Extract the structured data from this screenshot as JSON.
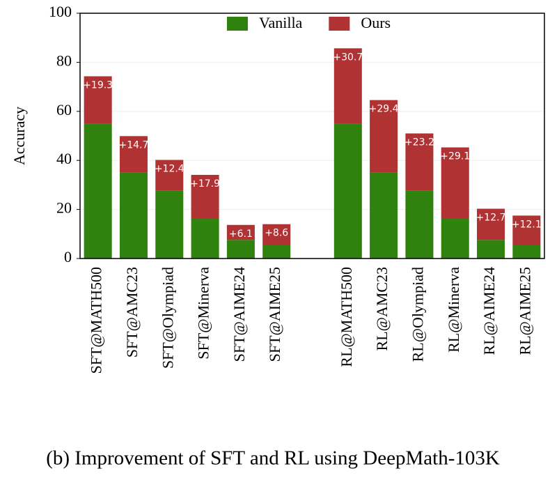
{
  "chart_data": {
    "type": "stacked-bar",
    "ylabel": "Accuracy",
    "caption": "(b) Improvement of SFT and RL using DeepMath-103K",
    "categories": [
      "SFT@MATH500",
      "SFT@AMC23",
      "SFT@Olympiad",
      "SFT@Minerva",
      "SFT@AIME24",
      "SFT@AIME25",
      null,
      "RL@MATH500",
      "RL@AMC23",
      "RL@Olympiad",
      "RL@Minerva",
      "RL@AIME24",
      "RL@AIME25"
    ],
    "series": [
      {
        "name": "Vanilla",
        "color": "#2e820d",
        "values": [
          55,
          35.2,
          27.8,
          16.2,
          7.6,
          5.4,
          null,
          55,
          35.2,
          27.8,
          16.2,
          7.6,
          5.4
        ]
      },
      {
        "name": "Ours",
        "color": "#b03232",
        "values": [
          19.3,
          14.7,
          12.4,
          17.9,
          6.1,
          8.6,
          null,
          30.7,
          29.4,
          23.2,
          29.1,
          12.7,
          12.1
        ],
        "value_labels": [
          "+19.3",
          "+14.7",
          "+12.4",
          "+17.9",
          "+6.1",
          "+8.6",
          null,
          "+30.7",
          "+29.4",
          "+23.2",
          "+29.1",
          "+12.7",
          "+12.1"
        ]
      }
    ],
    "ylim": [
      0,
      100
    ],
    "yticks": [
      0,
      20,
      40,
      60,
      80,
      100
    ],
    "grid": true,
    "legend": "top"
  }
}
